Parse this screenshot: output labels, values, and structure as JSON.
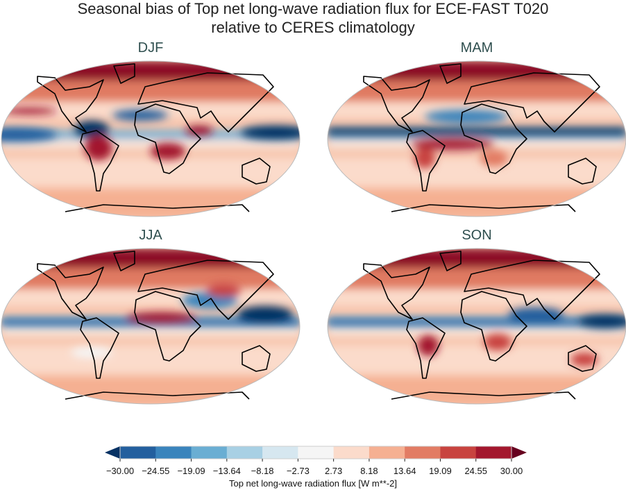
{
  "title": {
    "line1": "Seasonal bias of Top net long-wave radiation flux for ECE-FAST T020",
    "line2": "relative to CERES climatology"
  },
  "panels": [
    {
      "label": "DJF"
    },
    {
      "label": "MAM"
    },
    {
      "label": "JJA"
    },
    {
      "label": "SON"
    }
  ],
  "colorbar": {
    "label": "Top net long-wave radiation flux [W m**-2]",
    "ticks": [
      "−30.00",
      "−24.55",
      "−19.09",
      "−13.64",
      "−8.18",
      "−2.73",
      "2.73",
      "8.18",
      "13.64",
      "19.09",
      "24.55",
      "30.00"
    ],
    "colors": [
      "#235f9e",
      "#3a84bc",
      "#6aaed3",
      "#a8d0e4",
      "#d6e7f0",
      "#f5f5f5",
      "#fbdbcb",
      "#f5b092",
      "#e27c64",
      "#c8433f",
      "#a3172d"
    ],
    "under_color": "#063264",
    "over_color": "#67001f",
    "extend": "both"
  }
}
